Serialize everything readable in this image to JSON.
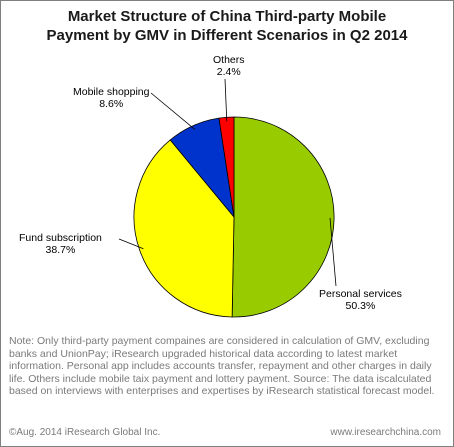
{
  "chart_data": {
    "type": "pie",
    "title": "Market Structure of China Third-party Mobile Payment by GMV in Different Scenarios in Q2 2014",
    "title_lines": [
      "Market Structure of China Third-party Mobile",
      "Payment by GMV in Different Scenarios in Q2 2014"
    ],
    "slices": [
      {
        "label": "Personal services",
        "value": 50.3,
        "value_label": "50.3%",
        "color": "#99cc00"
      },
      {
        "label": "Fund subscription",
        "value": 38.7,
        "value_label": "38.7%",
        "color": "#ffff00"
      },
      {
        "label": "Mobile shopping",
        "value": 8.6,
        "value_label": "8.6%",
        "color": "#0033cc"
      },
      {
        "label": "Others",
        "value": 2.4,
        "value_label": "2.4%",
        "color": "#ff0000"
      }
    ]
  },
  "note": "Note: Only third-party payment compaines  are considered in calculation of GMV, excluding banks and UnionPay;  iResearch upgraded historical data according to latest market  information.  Personal app includes accounts transfer, repayment and other charges in daily life.  Others include mobile taix payment and lottery payment. Source: The data iscalculated based on interviews with enterprises and expertises by iResearch statistical forecast model.",
  "footer": {
    "copyright": "©Aug. 2014 iResearch Global Inc.",
    "website": "www.iresearchchina.com"
  }
}
